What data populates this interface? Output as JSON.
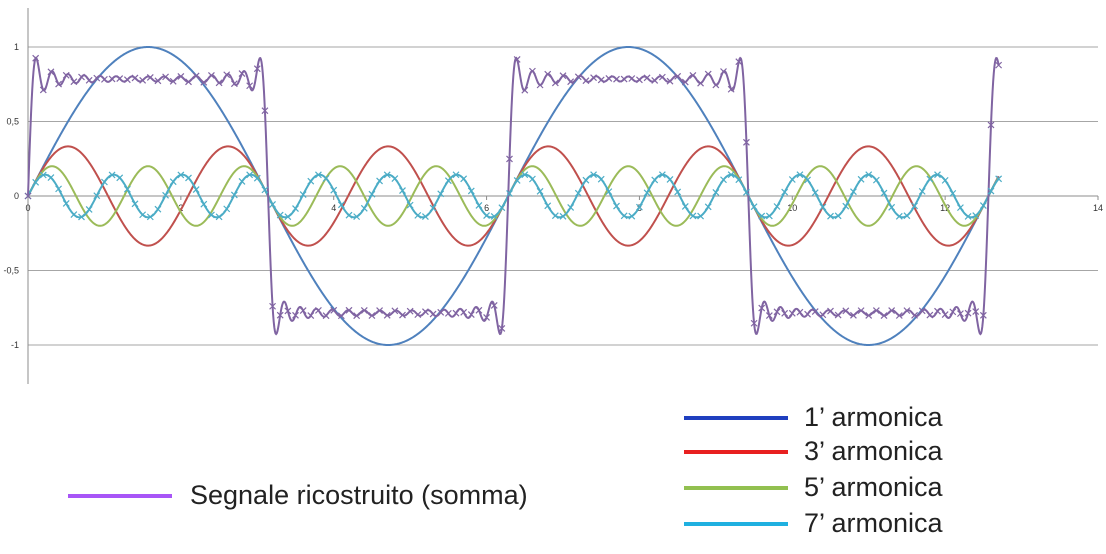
{
  "chart_data": {
    "type": "line",
    "title": "",
    "xlabel": "",
    "ylabel": "",
    "xlim": [
      0,
      14
    ],
    "ylim": [
      -1.25,
      1.25
    ],
    "x_ticks": [
      0,
      2,
      4,
      6,
      8,
      10,
      12,
      14
    ],
    "y_ticks": [
      1,
      0.5,
      0,
      -0.5,
      -1
    ],
    "x_tick_labels": [
      "0",
      "2",
      "4",
      "6",
      "8",
      "10",
      "12",
      "14"
    ],
    "y_tick_labels": [
      "1",
      "0,5",
      "0",
      "-0,5",
      "-1"
    ],
    "grid": "horizontal",
    "x_range": [
      0,
      12.7
    ],
    "series": [
      {
        "name": "1’ armonica",
        "harmonic": 1,
        "amplitude": 1.0,
        "color": "#4f81bd",
        "legend_color": "#1f3fbf",
        "markers": false
      },
      {
        "name": "3’ armonica",
        "harmonic": 3,
        "amplitude": 0.333,
        "color": "#c0504d",
        "legend_color": "#e82020",
        "markers": false
      },
      {
        "name": "5’ armonica",
        "harmonic": 5,
        "amplitude": 0.2,
        "color": "#9bbb59",
        "legend_color": "#92c050",
        "markers": false
      },
      {
        "name": "7’ armonica",
        "harmonic": 7,
        "amplitude": 0.143,
        "color": "#4bacc6",
        "legend_color": "#1fb0e0",
        "markers": true
      },
      {
        "name": "Segnale ricostruito (somma)",
        "harmonic": "sum",
        "terms": [
          1,
          3,
          5,
          7,
          9,
          11,
          13,
          15,
          17,
          19,
          21,
          23,
          25,
          27,
          29
        ],
        "amplitude_rule": "1/n",
        "color": "#8064a2",
        "legend_color": "#a855f7",
        "markers": true
      }
    ]
  }
}
